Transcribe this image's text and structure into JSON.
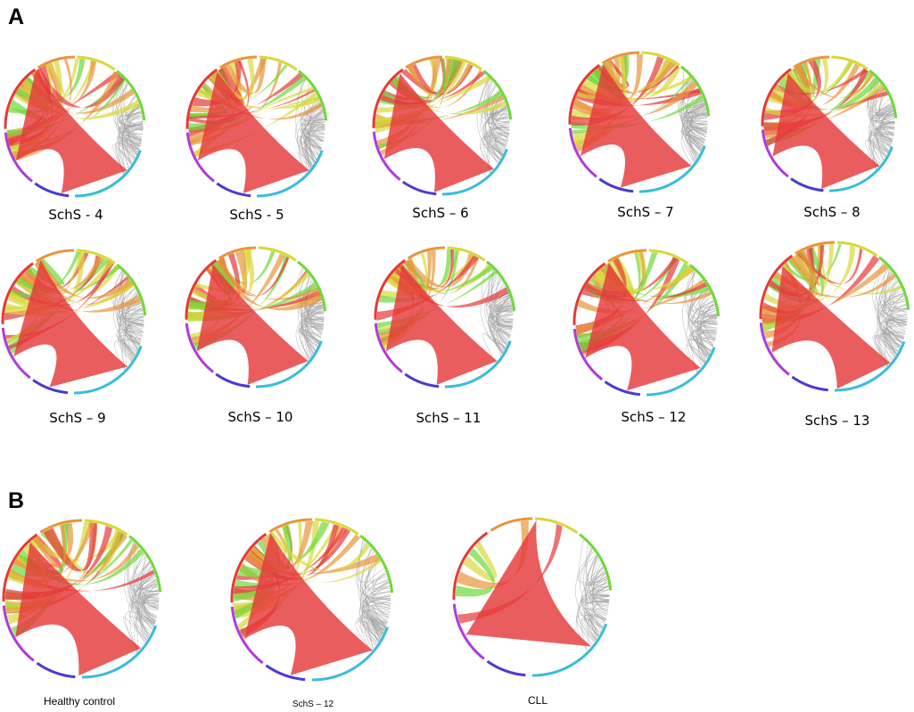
{
  "panels": {
    "a": {
      "letter": "A"
    },
    "b": {
      "letter": "B"
    }
  },
  "colors": {
    "red": "#e5393a",
    "orange": "#e8953a",
    "yellow": "#d8d83a",
    "green": "#6fd83a",
    "cyan": "#3bbcd9",
    "blue": "#4a3bd1",
    "purple": "#b03bd8",
    "grey": "#8a8a8a"
  },
  "plots": [
    {
      "id": "schs4",
      "label": "SchS - 4",
      "dominance": 0.35
    },
    {
      "id": "schs5",
      "label": "SchS - 5",
      "dominance": 0.35
    },
    {
      "id": "schs6",
      "label": "SchS – 6",
      "dominance": 0.3
    },
    {
      "id": "schs7",
      "label": "SchS – 7",
      "dominance": 0.4
    },
    {
      "id": "schs8",
      "label": "SchS – 8",
      "dominance": 0.3
    },
    {
      "id": "schs9",
      "label": "SchS – 9",
      "dominance": 0.45
    },
    {
      "id": "schs10",
      "label": "SchS – 10",
      "dominance": 0.3
    },
    {
      "id": "schs11",
      "label": "SchS – 11",
      "dominance": 0.3
    },
    {
      "id": "schs12",
      "label": "SchS – 12",
      "dominance": 0.4
    },
    {
      "id": "schs13",
      "label": "SchS – 13",
      "dominance": 0.2
    },
    {
      "id": "healthy",
      "label": "Healthy control",
      "dominance": 0.25
    },
    {
      "id": "schs12b",
      "label": "SchS – 12",
      "dominance": 0.4
    },
    {
      "id": "cll",
      "label": "CLL",
      "dominance": 0.9
    }
  ]
}
